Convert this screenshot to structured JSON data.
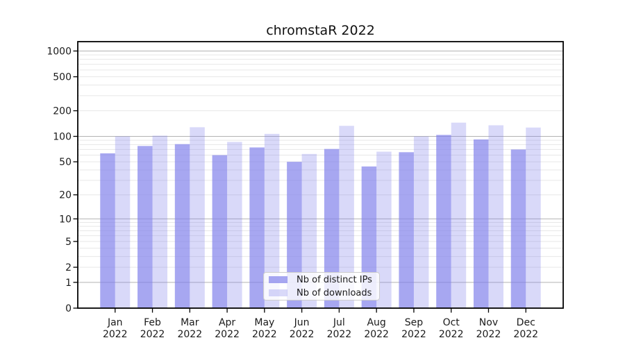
{
  "chart_data": {
    "type": "bar",
    "title": "chromstaR 2022",
    "categories": [
      "Jan 2022",
      "Feb 2022",
      "Mar 2022",
      "Apr 2022",
      "May 2022",
      "Jun 2022",
      "Jul 2022",
      "Aug 2022",
      "Sep 2022",
      "Oct 2022",
      "Nov 2022",
      "Dec 2022"
    ],
    "series": [
      {
        "name": "Nb of distinct IPs",
        "color": "rgba(130,130,235,0.7)",
        "values": [
          63,
          77,
          81,
          60,
          74,
          50,
          71,
          44,
          65,
          104,
          92,
          70
        ]
      },
      {
        "name": "Nb of downloads",
        "color": "rgba(130,130,235,0.3)",
        "values": [
          100,
          102,
          128,
          86,
          107,
          62,
          133,
          66,
          100,
          145,
          135,
          127
        ]
      }
    ],
    "xlabel": "",
    "ylabel": "",
    "yscale": {
      "type": "symlog",
      "constant": 1,
      "ymax": 1286,
      "ticks": [
        0,
        1,
        2,
        5,
        10,
        20,
        50,
        100,
        200,
        500,
        1000
      ],
      "major_gridlines": [
        1,
        10,
        100,
        1000
      ],
      "minor_gridlines": [
        2,
        3,
        4,
        5,
        6,
        7,
        8,
        9,
        20,
        30,
        40,
        50,
        60,
        70,
        80,
        90,
        200,
        300,
        400,
        500,
        600,
        700,
        800,
        900
      ]
    },
    "grid": {
      "on": true,
      "major_color": "#b2b2b2",
      "minor_color": "#e7e7e7"
    },
    "legend": {
      "position": "bottom-center-inside"
    },
    "axis_color": "#000000",
    "tick_label_color": "#1a1a1a"
  }
}
